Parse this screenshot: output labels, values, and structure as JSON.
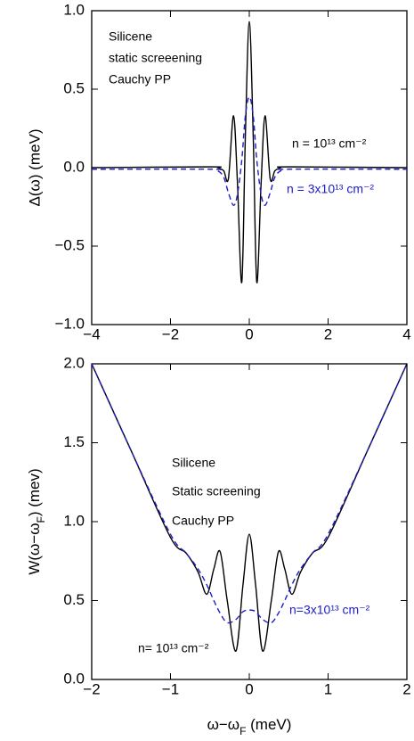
{
  "chart_data": [
    {
      "type": "line",
      "ylabel": "Δ(ω) (meV)",
      "annotations": [
        "Silicene",
        "static screeening",
        "Cauchy PP"
      ],
      "x": [
        -4,
        -1,
        -0.8,
        -0.65,
        -0.53,
        -0.4,
        -0.3,
        -0.19,
        -0.1,
        0,
        0.1,
        0.19,
        0.3,
        0.4,
        0.53,
        0.65,
        0.8,
        1,
        4
      ],
      "series": [
        {
          "name": "n = 10¹³ cm⁻²",
          "color": "#000000",
          "linestyle": "solid",
          "values": [
            0,
            0.005,
            0,
            -0.02,
            -0.07,
            0.33,
            -0.1,
            -0.73,
            0.2,
            0.93,
            0.2,
            -0.73,
            -0.1,
            0.33,
            -0.07,
            -0.02,
            0,
            0.005,
            0
          ]
        },
        {
          "name": "n = 3x10¹³ cm⁻²",
          "color": "#1c1ccc",
          "linestyle": "dashed",
          "values": [
            -0.01,
            -0.01,
            -0.02,
            -0.06,
            -0.16,
            -0.24,
            -0.17,
            0.05,
            0.33,
            0.45,
            0.33,
            0.05,
            -0.17,
            -0.24,
            -0.16,
            -0.06,
            -0.02,
            -0.01,
            -0.01
          ]
        }
      ],
      "xlim": [
        -4,
        4
      ],
      "xticks": [
        {
          "value": -4,
          "label": "−4"
        },
        {
          "value": -2,
          "label": "−2"
        },
        0,
        2,
        4
      ],
      "ylim": [
        -1,
        1
      ],
      "yticks": [
        {
          "value": -1,
          "label": "−1.0"
        },
        {
          "value": -0.5,
          "label": "−0.5"
        },
        {
          "value": 0,
          "label": "0.0"
        },
        {
          "value": 0.5,
          "label": "0.5"
        },
        {
          "value": 1,
          "label": "1.0"
        }
      ]
    },
    {
      "type": "line",
      "ylabel": [
        "W(ω−ω",
        "F",
        ") (mev)"
      ],
      "xlabel": [
        "ω−ω",
        "F",
        " (meV)"
      ],
      "annotations": [
        "Silicene",
        "Static screening",
        "Cauchy PP"
      ],
      "x": [
        -2,
        -1.5,
        -1,
        -0.8,
        -0.65,
        -0.54,
        -0.45,
        -0.37,
        -0.28,
        -0.17,
        -0.08,
        0,
        0.08,
        0.17,
        0.28,
        0.37,
        0.45,
        0.54,
        0.65,
        0.8,
        1,
        1.5,
        2
      ],
      "series": [
        {
          "name": "n= 10¹³ cm⁻²",
          "color": "#000000",
          "linestyle": "solid",
          "values": [
            2,
            1.45,
            0.9,
            0.8,
            0.68,
            0.54,
            0.7,
            0.81,
            0.5,
            0.18,
            0.6,
            0.92,
            0.6,
            0.18,
            0.5,
            0.81,
            0.7,
            0.54,
            0.68,
            0.8,
            0.9,
            1.45,
            2
          ]
        },
        {
          "name": "n=3x10¹³ cm⁻²",
          "color": "#1c1ccc",
          "linestyle": "dashed",
          "values": [
            2,
            1.45,
            0.92,
            0.8,
            0.7,
            0.6,
            0.5,
            0.42,
            0.36,
            0.38,
            0.43,
            0.44,
            0.43,
            0.38,
            0.36,
            0.42,
            0.5,
            0.6,
            0.7,
            0.8,
            0.92,
            1.45,
            2
          ]
        }
      ],
      "xlim": [
        -2,
        2
      ],
      "xticks": [
        {
          "value": -2,
          "label": "−2"
        },
        {
          "value": -1,
          "label": "−1"
        },
        0,
        1,
        2
      ],
      "ylim": [
        0,
        2
      ],
      "yticks": [
        {
          "value": 0,
          "label": "0.0"
        },
        {
          "value": 0.5,
          "label": "0.5"
        },
        {
          "value": 1,
          "label": "1.0"
        },
        {
          "value": 1.5,
          "label": "1.5"
        },
        {
          "value": 2,
          "label": "2.0"
        }
      ]
    }
  ]
}
